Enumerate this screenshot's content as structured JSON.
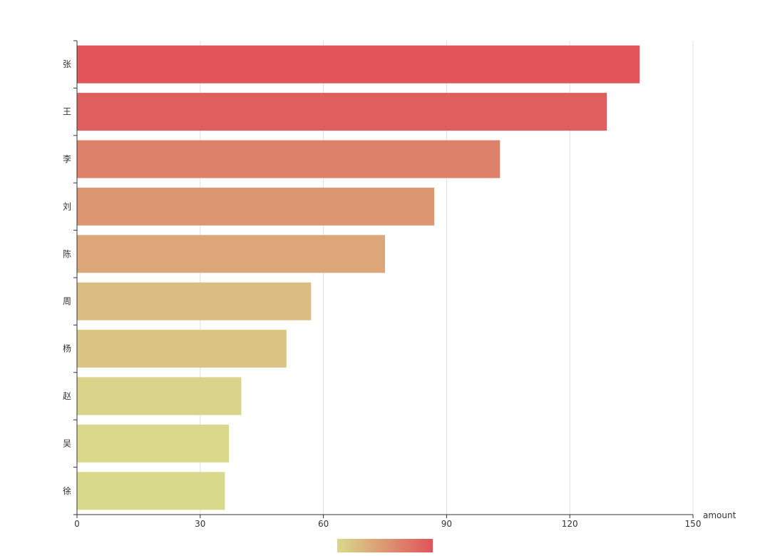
{
  "chart_data": {
    "type": "bar",
    "orientation": "horizontal",
    "categories": [
      "张",
      "王",
      "李",
      "刘",
      "陈",
      "周",
      "杨",
      "赵",
      "吴",
      "徐"
    ],
    "values": [
      137,
      129,
      103,
      87,
      75,
      57,
      51,
      40,
      37,
      36
    ],
    "xlabel": "amount",
    "ylabel": "",
    "xlim": [
      0,
      150
    ],
    "xticks": [
      "0",
      "30",
      "60",
      "90",
      "120",
      "150"
    ],
    "grid": true,
    "visual_map": {
      "min": 36,
      "max": 137,
      "colors": [
        "#d9d98b",
        "#e0545a"
      ]
    }
  }
}
